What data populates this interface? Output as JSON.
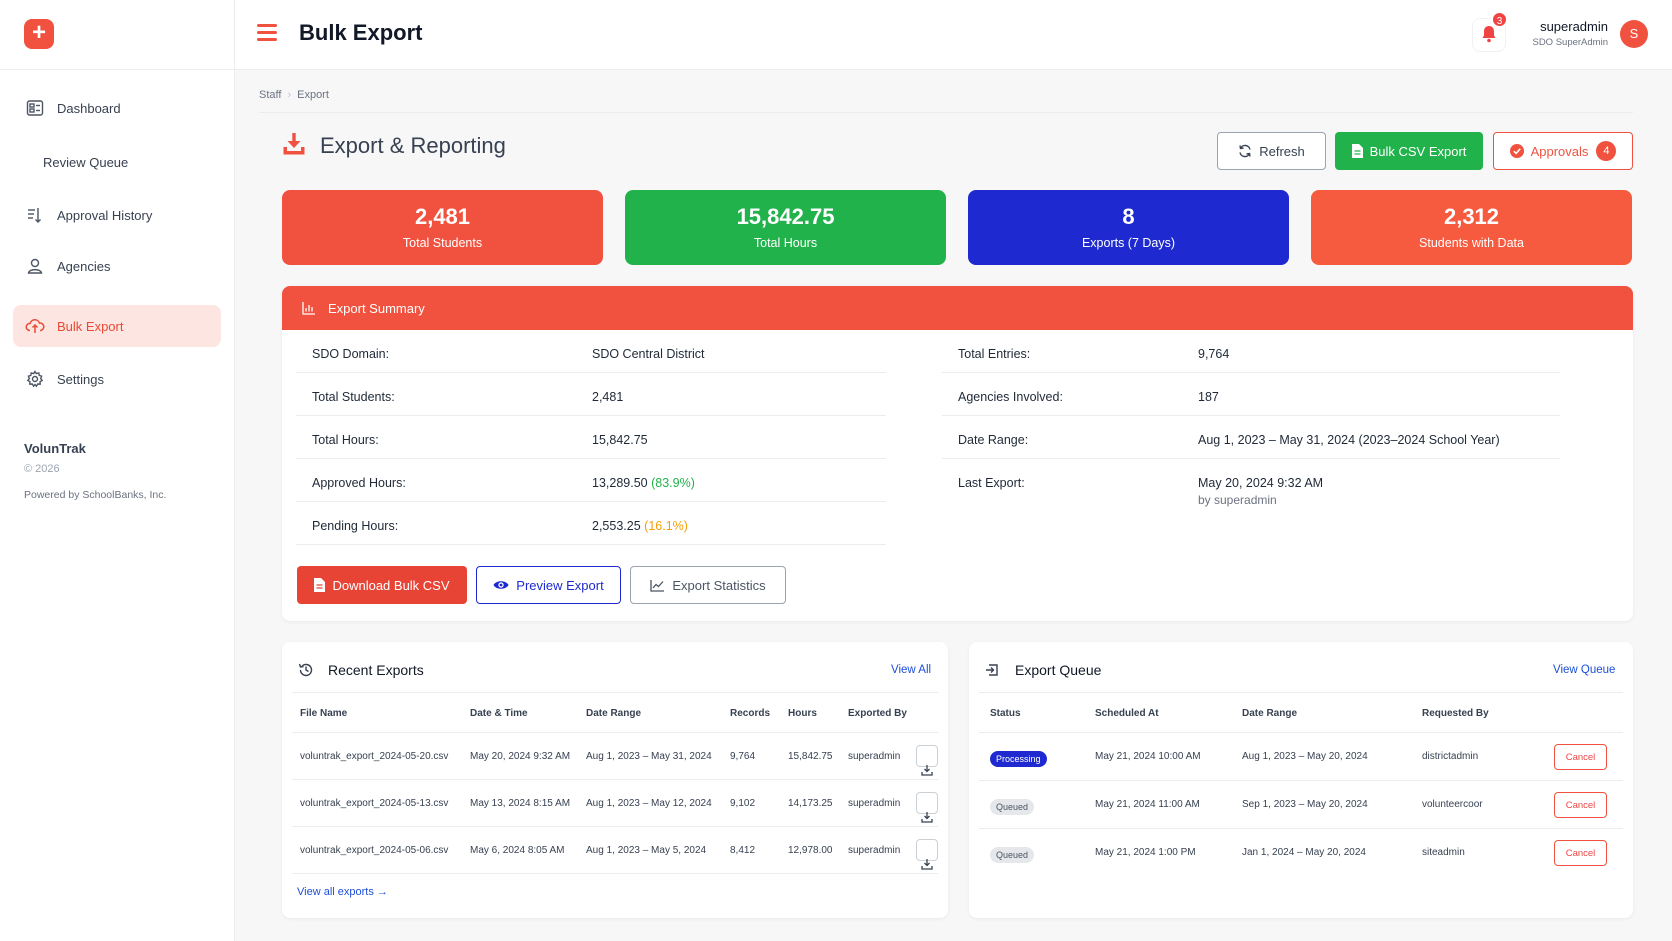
{
  "sidebar": {
    "items": [
      {
        "label": "Dashboard",
        "icon": "dashboard-icon"
      },
      {
        "label": "Review Queue",
        "icon": ""
      },
      {
        "label": "Approval History",
        "icon": "history-list-icon"
      },
      {
        "label": "Agencies",
        "icon": "user-icon"
      },
      {
        "label": "Bulk Export",
        "icon": "cloud-upload-icon",
        "active": true
      },
      {
        "label": "Settings",
        "icon": "gear-icon"
      }
    ],
    "brand": "VolunTrak",
    "copyright": "© 2026",
    "powered": "Powered by SchoolBanks, Inc."
  },
  "header": {
    "title": "Bulk Export",
    "notifications": "3",
    "user_name": "superadmin",
    "user_role": "SDO SuperAdmin",
    "avatar_initial": "S"
  },
  "breadcrumb": {
    "root": "Staff",
    "current": "Export"
  },
  "section": {
    "title": "Export & Reporting",
    "refresh_label": "Refresh",
    "csv_label": "Bulk CSV Export",
    "approvals_label": "Approvals",
    "approvals_count": "4"
  },
  "stats": [
    {
      "value": "2,481",
      "label": "Total Students",
      "color": "#f0523f"
    },
    {
      "value": "15,842.75",
      "label": "Total Hours",
      "color": "#22b24c"
    },
    {
      "value": "8",
      "label": "Exports (7 Days)",
      "color": "#1e2ad0"
    },
    {
      "value": "2,312",
      "label": "Students with Data",
      "color": "#f65a3f"
    }
  ],
  "summary": {
    "title": "Export Summary",
    "left": [
      {
        "key": "SDO Domain:",
        "value": "SDO Central District"
      },
      {
        "key": "Total Students:",
        "value": "2,481"
      },
      {
        "key": "Total Hours:",
        "value": "15,842.75"
      },
      {
        "key": "Approved Hours:",
        "value": "13,289.50",
        "pct": "(83.9%)"
      },
      {
        "key": "Pending Hours:",
        "value": "2,553.25",
        "pct": "(16.1%)"
      }
    ],
    "right": [
      {
        "key": "Total Entries:",
        "value": "9,764"
      },
      {
        "key": "Agencies Involved:",
        "value": "187"
      },
      {
        "key": "Date Range:",
        "value": "Aug 1, 2023 – May 31, 2024 (2023–2024 School Year)"
      },
      {
        "key": "Last Export:",
        "value": "May 20, 2024 9:32 AM",
        "sub": "by superadmin"
      }
    ],
    "download_label": "Download Bulk CSV",
    "preview_label": "Preview Export",
    "statistics_label": "Export Statistics"
  },
  "recent": {
    "title": "Recent Exports",
    "view_all": "View All",
    "columns": [
      "File Name",
      "Date & Time",
      "Date Range",
      "Records",
      "Hours",
      "Exported By"
    ],
    "rows": [
      [
        "voluntrak_export_2024-05-20.csv",
        "May 20, 2024 9:32 AM",
        "Aug 1, 2023 – May 31, 2024",
        "9,764",
        "15,842.75",
        "superadmin"
      ],
      [
        "voluntrak_export_2024-05-13.csv",
        "May 13, 2024 8:15 AM",
        "Aug 1, 2023 – May 12, 2024",
        "9,102",
        "14,173.25",
        "superadmin"
      ],
      [
        "voluntrak_export_2024-05-06.csv",
        "May 6, 2024 8:05 AM",
        "Aug 1, 2023 – May 5, 2024",
        "8,412",
        "12,978.00",
        "superadmin"
      ]
    ],
    "footer_link": "View all exports →"
  },
  "queue": {
    "title": "Export Queue",
    "view_queue": "View Queue",
    "columns": [
      "Status",
      "Scheduled At",
      "Date Range",
      "Requested By"
    ],
    "rows": [
      {
        "status": "Processing",
        "scheduled": "May 21, 2024 10:00 AM",
        "range": "Aug 1, 2023 – May 20, 2024",
        "by": "districtadmin"
      },
      {
        "status": "Queued",
        "scheduled": "May 21, 2024 11:00 AM",
        "range": "Sep 1, 2023 – May 20, 2024",
        "by": "volunteercoor"
      },
      {
        "status": "Queued",
        "scheduled": "May 21, 2024 1:00 PM",
        "range": "Jan 1, 2024 – May 20, 2024",
        "by": "siteadmin"
      }
    ],
    "cancel_label": "Cancel"
  }
}
